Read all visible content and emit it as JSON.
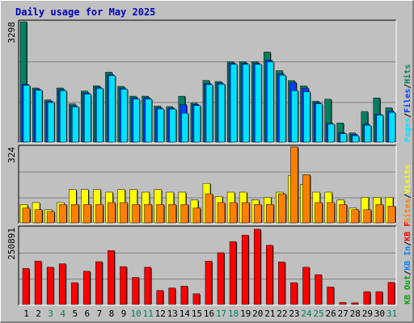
{
  "title": "Daily usage for May 2025",
  "colors": {
    "background": "#c0c0c0",
    "plot_bg": "#c0c0c0",
    "title": "#0000c0",
    "hits": "#008060",
    "files": "#0040ff",
    "pages": "#00e0ff",
    "visits": "#ffff00",
    "sites": "#ff8000",
    "kb_f": "#ff0000",
    "kb_in": "#0080ff",
    "kb_out": "#00a000",
    "day_weekday": "#000000",
    "day_weekend": "#008060"
  },
  "chart_data": [
    {
      "type": "bar",
      "y_max_label": "3298",
      "ylim": [
        0,
        3298
      ],
      "legend": [
        {
          "text": "Hits",
          "color": "#008060"
        },
        {
          "text": "Files",
          "color": "#0040ff"
        },
        {
          "text": "Pages",
          "color": "#00e0ff"
        }
      ],
      "categories": [
        "1",
        "2",
        "3",
        "4",
        "5",
        "6",
        "7",
        "8",
        "9",
        "10",
        "11",
        "12",
        "13",
        "14",
        "15",
        "16",
        "17",
        "18",
        "19",
        "20",
        "21",
        "22",
        "23",
        "24",
        "25",
        "26",
        "27",
        "28",
        "29",
        "30",
        "31"
      ],
      "series": [
        {
          "name": "Hits",
          "values": [
            3298,
            1495,
            1172,
            1495,
            1061,
            1413,
            1558,
            1927,
            1540,
            1273,
            1273,
            1003,
            988,
            1272,
            1081,
            1700,
            1672,
            2212,
            2212,
            2212,
            2475,
            1968,
            1696,
            1552,
            1136,
            1191,
            544,
            272,
            855,
            1224,
            956
          ]
        },
        {
          "name": "Files",
          "values": [
            1595,
            1459,
            1133,
            1452,
            1012,
            1366,
            1515,
            1864,
            1495,
            1222,
            1227,
            953,
            946,
            1044,
            1047,
            1616,
            1632,
            2170,
            2169,
            2163,
            2255,
            1876,
            1646,
            1492,
            1093,
            536,
            278,
            232,
            511,
            786,
            868
          ]
        },
        {
          "name": "Pages",
          "values": [
            1567,
            1434,
            1101,
            1421,
            983,
            1330,
            1485,
            1832,
            1466,
            1196,
            1196,
            924,
            922,
            810,
            1017,
            1587,
            1600,
            2139,
            2139,
            2139,
            2204,
            1845,
            1422,
            1394,
            1063,
            514,
            252,
            196,
            481,
            760,
            829
          ]
        }
      ]
    },
    {
      "type": "bar",
      "y_max_label": "324",
      "ylim": [
        0,
        324
      ],
      "legend": [
        {
          "text": "Visits",
          "color": "#ffff00"
        },
        {
          "text": "Sites",
          "color": "#ff8000"
        }
      ],
      "categories": [
        "1",
        "2",
        "3",
        "4",
        "5",
        "6",
        "7",
        "8",
        "9",
        "10",
        "11",
        "12",
        "13",
        "14",
        "15",
        "16",
        "17",
        "18",
        "19",
        "20",
        "21",
        "22",
        "23",
        "24",
        "25",
        "26",
        "27",
        "28",
        "29",
        "30",
        "31"
      ],
      "series": [
        {
          "name": "Visits",
          "values": [
            81,
            89,
            59,
            89,
            144,
            144,
            144,
            133,
            144,
            144,
            133,
            144,
            133,
            133,
            100,
            170,
            115,
            133,
            133,
            100,
            111,
            133,
            204,
            166,
            133,
            133,
            100,
            66,
            111,
            111,
            111
          ]
        },
        {
          "name": "Sites",
          "values": [
            66,
            59,
            52,
            81,
            81,
            81,
            81,
            89,
            89,
            81,
            81,
            81,
            81,
            81,
            66,
            126,
            89,
            89,
            89,
            81,
            81,
            126,
            324,
            207,
            89,
            89,
            81,
            59,
            59,
            81,
            74
          ]
        }
      ]
    },
    {
      "type": "bar",
      "y_max_label": "250891",
      "ylim": [
        0,
        250891
      ],
      "legend": [
        {
          "text": "KB F",
          "color": "#ff0000"
        },
        {
          "text": "KB In",
          "color": "#0080ff"
        },
        {
          "text": "KB Out",
          "color": "#00a000"
        }
      ],
      "categories": [
        "1",
        "2",
        "3",
        "4",
        "5",
        "6",
        "7",
        "8",
        "9",
        "10",
        "11",
        "12",
        "13",
        "14",
        "15",
        "16",
        "17",
        "18",
        "19",
        "20",
        "21",
        "22",
        "23",
        "24",
        "25",
        "26",
        "27",
        "28",
        "29",
        "30",
        "31"
      ],
      "series": [
        {
          "name": "KB F",
          "values": [
            119000,
            143000,
            123000,
            134000,
            73000,
            110000,
            141000,
            177000,
            125000,
            90000,
            123000,
            48000,
            56000,
            62000,
            37000,
            143000,
            170000,
            206000,
            227000,
            246000,
            194000,
            140000,
            73000,
            123000,
            99000,
            59000,
            9000,
            8000,
            44000,
            44000,
            74000
          ]
        }
      ]
    }
  ],
  "x_axis": {
    "labels": [
      "1",
      "2",
      "3",
      "4",
      "5",
      "6",
      "7",
      "8",
      "9",
      "10",
      "11",
      "12",
      "13",
      "14",
      "15",
      "16",
      "17",
      "18",
      "19",
      "20",
      "21",
      "22",
      "23",
      "24",
      "25",
      "26",
      "27",
      "28",
      "29",
      "30",
      "31"
    ],
    "weekend": [
      false,
      false,
      true,
      true,
      false,
      false,
      false,
      false,
      false,
      true,
      true,
      false,
      false,
      false,
      false,
      false,
      true,
      true,
      false,
      false,
      false,
      false,
      false,
      true,
      true,
      false,
      false,
      false,
      false,
      false,
      true
    ]
  }
}
